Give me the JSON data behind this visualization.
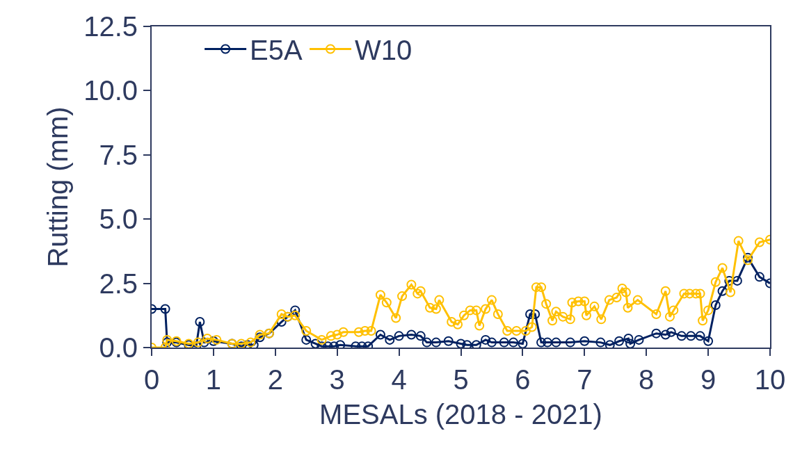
{
  "chart_data": {
    "type": "line",
    "xlabel": "MESALs (2018 - 2021)",
    "ylabel": "Rutting (mm)",
    "xlim": [
      0,
      10
    ],
    "xticks": [
      0,
      1,
      2,
      3,
      4,
      5,
      6,
      7,
      8,
      9,
      10
    ],
    "ylim": [
      0,
      12.5
    ],
    "yticks": [
      {
        "value": 0,
        "label": "0.0"
      },
      {
        "value": 2.5,
        "label": "2.5"
      },
      {
        "value": 5,
        "label": "5.0"
      },
      {
        "value": 7.5,
        "label": "7.5"
      },
      {
        "value": 10,
        "label": "10.0"
      },
      {
        "value": 12.5,
        "label": "12.5"
      }
    ],
    "legend": "top left",
    "marker": "circle",
    "line_style": "solid",
    "series": [
      {
        "name": "E5A",
        "color": "#002060",
        "x": [
          0,
          0.22,
          0.25,
          0.4,
          0.6,
          0.72,
          0.78,
          0.85,
          1.0,
          1.3,
          1.45,
          1.55,
          1.65,
          1.75,
          1.9,
          2.1,
          2.2,
          2.32,
          2.5,
          2.65,
          2.75,
          2.85,
          2.95,
          3.05,
          3.3,
          3.4,
          3.5,
          3.7,
          3.85,
          4.0,
          4.2,
          4.35,
          4.45,
          4.6,
          4.8,
          5.0,
          5.1,
          5.25,
          5.4,
          5.5,
          5.7,
          5.85,
          6.0,
          6.12,
          6.2,
          6.3,
          6.4,
          6.54,
          6.77,
          7.0,
          7.26,
          7.41,
          7.56,
          7.71,
          7.74,
          7.88,
          8.16,
          8.31,
          8.4,
          8.57,
          8.72,
          8.87,
          9.0,
          9.12,
          9.23,
          9.34,
          9.47,
          9.64,
          9.83,
          10
        ],
        "values": [
          1.5,
          1.5,
          0.2,
          0.2,
          0.1,
          0.05,
          1.0,
          0.2,
          0.25,
          0.15,
          0.05,
          0.1,
          0.1,
          0.4,
          0.55,
          1.0,
          1.2,
          1.45,
          0.3,
          0.15,
          0.05,
          0.05,
          0.05,
          0.1,
          0.05,
          0.05,
          0.05,
          0.5,
          0.3,
          0.45,
          0.5,
          0.45,
          0.2,
          0.2,
          0.25,
          0.15,
          0.1,
          0.1,
          0.3,
          0.2,
          0.2,
          0.2,
          0.15,
          1.3,
          1.3,
          0.2,
          0.2,
          0.2,
          0.2,
          0.25,
          0.2,
          0.1,
          0.25,
          0.35,
          0.15,
          0.3,
          0.55,
          0.5,
          0.6,
          0.45,
          0.45,
          0.45,
          0.25,
          1.65,
          2.2,
          2.6,
          2.6,
          3.5,
          2.75,
          2.5
        ]
      },
      {
        "name": "W10",
        "color": "#ffc000",
        "x": [
          0,
          0.22,
          0.25,
          0.4,
          0.6,
          0.75,
          0.9,
          1.05,
          1.3,
          1.45,
          1.6,
          1.75,
          1.9,
          2.1,
          2.2,
          2.32,
          2.5,
          2.75,
          2.9,
          3.0,
          3.1,
          3.35,
          3.45,
          3.55,
          3.7,
          3.8,
          3.95,
          4.05,
          4.2,
          4.3,
          4.35,
          4.5,
          4.6,
          4.65,
          4.85,
          4.95,
          5.05,
          5.15,
          5.25,
          5.3,
          5.4,
          5.5,
          5.6,
          5.75,
          5.9,
          6.05,
          6.15,
          6.22,
          6.3,
          6.38,
          6.48,
          6.54,
          6.65,
          6.77,
          6.8,
          6.9,
          7.0,
          7.03,
          7.16,
          7.27,
          7.4,
          7.52,
          7.61,
          7.67,
          7.7,
          7.86,
          8.16,
          8.31,
          8.38,
          8.44,
          8.61,
          8.7,
          8.8,
          8.87,
          8.91,
          9.0,
          9.12,
          9.23,
          9.36,
          9.49,
          9.64,
          9.83,
          10
        ],
        "values": [
          0,
          0,
          0.3,
          0.25,
          0.15,
          0.2,
          0.35,
          0.3,
          0.15,
          0.15,
          0.2,
          0.5,
          0.55,
          1.3,
          1.2,
          1.25,
          0.65,
          0.3,
          0.45,
          0.5,
          0.6,
          0.6,
          0.65,
          0.65,
          2.05,
          1.75,
          1.15,
          2.0,
          2.45,
          2.1,
          2.2,
          1.55,
          1.5,
          1.85,
          1.0,
          0.9,
          1.25,
          1.45,
          1.45,
          0.85,
          1.5,
          1.85,
          1.3,
          0.65,
          0.65,
          0.65,
          0.8,
          2.35,
          2.35,
          1.7,
          1.05,
          1.4,
          1.2,
          1.1,
          1.75,
          1.8,
          1.8,
          1.25,
          1.6,
          1.1,
          1.85,
          1.95,
          2.3,
          2.15,
          1.55,
          1.85,
          1.3,
          2.2,
          1.2,
          1.45,
          2.1,
          2.1,
          2.1,
          2.1,
          1.05,
          1.45,
          2.55,
          3.1,
          2.15,
          4.15,
          3.4,
          4.1,
          4.2
        ]
      }
    ]
  }
}
